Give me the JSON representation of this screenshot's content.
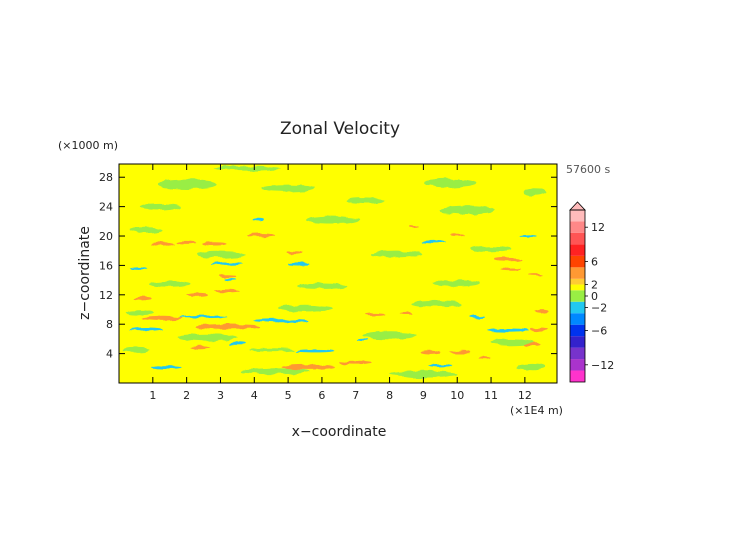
{
  "chart_data": {
    "type": "heatmap",
    "title": "Zonal Velocity",
    "xlabel": "x−coordinate",
    "ylabel": "z−coordinate",
    "x_unit": "(×1E4 m)",
    "y_unit": "(×1000 m)",
    "time_label": "57600 s",
    "xlim": [
      0,
      12.95
    ],
    "ylim": [
      0,
      29.8
    ],
    "x_ticks": [
      1,
      2,
      3,
      4,
      5,
      6,
      7,
      8,
      9,
      10,
      11,
      12
    ],
    "y_ticks": [
      4,
      8,
      12,
      16,
      20,
      24,
      28
    ],
    "colorbar": {
      "range": [
        -15,
        15
      ],
      "labels": [
        12,
        6,
        2,
        0,
        -2,
        -6,
        -12
      ],
      "tick_labels": [
        "12",
        "6",
        "2",
        "0",
        "−2",
        "−6",
        "−12"
      ],
      "levels": [
        {
          "lo": -15,
          "hi": -13,
          "color": "#ff33cc"
        },
        {
          "lo": -13,
          "hi": -11,
          "color": "#aa33cc"
        },
        {
          "lo": -11,
          "hi": -9,
          "color": "#7733cc"
        },
        {
          "lo": -9,
          "hi": -7,
          "color": "#3322cc"
        },
        {
          "lo": -7,
          "hi": -5,
          "color": "#0033ee"
        },
        {
          "lo": -5,
          "hi": -3,
          "color": "#0088ff"
        },
        {
          "lo": -3,
          "hi": -1,
          "color": "#22c8f0"
        },
        {
          "lo": -1,
          "hi": 1,
          "color": "#99ee44"
        },
        {
          "lo": 1,
          "hi": 2,
          "color": "#ffff00"
        },
        {
          "lo": 2,
          "hi": 3,
          "color": "#ffcc33"
        },
        {
          "lo": 3,
          "hi": 5,
          "color": "#ff9933"
        },
        {
          "lo": 5,
          "hi": 7,
          "color": "#ff4400"
        },
        {
          "lo": 7,
          "hi": 9,
          "color": "#ff2222"
        },
        {
          "lo": 9,
          "hi": 11,
          "color": "#ff5555"
        },
        {
          "lo": 11,
          "hi": 13,
          "color": "#ff8888"
        },
        {
          "lo": 13,
          "hi": 15,
          "color": "#ffbbbb"
        }
      ]
    },
    "background_level": 1.5,
    "regions": [
      {
        "x": 1.3,
        "z": 8.8,
        "w": 1.2,
        "h": 0.55,
        "value": 3.5
      },
      {
        "x": 0.8,
        "z": 7.4,
        "w": 1.0,
        "h": 0.45,
        "value": -2.5
      },
      {
        "x": 2.5,
        "z": 9.0,
        "w": 1.4,
        "h": 0.35,
        "value": -2.5
      },
      {
        "x": 3.2,
        "z": 7.7,
        "w": 1.9,
        "h": 0.65,
        "value": 3.5
      },
      {
        "x": 4.8,
        "z": 8.4,
        "w": 1.6,
        "h": 0.4,
        "value": -2.5
      },
      {
        "x": 4.5,
        "z": 4.5,
        "w": 1.3,
        "h": 0.45,
        "value": 0
      },
      {
        "x": 5.8,
        "z": 4.3,
        "w": 1.2,
        "h": 0.4,
        "value": -2.5
      },
      {
        "x": 5.6,
        "z": 2.2,
        "w": 1.6,
        "h": 0.7,
        "value": 3.5
      },
      {
        "x": 7.0,
        "z": 2.8,
        "w": 1.0,
        "h": 0.45,
        "value": 3.5
      },
      {
        "x": 2.4,
        "z": 4.8,
        "w": 0.6,
        "h": 0.4,
        "value": 3.5
      },
      {
        "x": 3.5,
        "z": 5.3,
        "w": 0.5,
        "h": 0.35,
        "value": -2.5
      },
      {
        "x": 1.4,
        "z": 2.2,
        "w": 0.9,
        "h": 0.45,
        "value": -2.5
      },
      {
        "x": 0.7,
        "z": 11.5,
        "w": 0.5,
        "h": 0.5,
        "value": 3.5
      },
      {
        "x": 2.3,
        "z": 12.1,
        "w": 0.6,
        "h": 0.5,
        "value": 3.5
      },
      {
        "x": 3.2,
        "z": 12.6,
        "w": 0.8,
        "h": 0.4,
        "value": 3.5
      },
      {
        "x": 3.2,
        "z": 14.5,
        "w": 0.5,
        "h": 0.45,
        "value": 3.5
      },
      {
        "x": 3.2,
        "z": 16.2,
        "w": 0.9,
        "h": 0.4,
        "value": -2.5
      },
      {
        "x": 1.3,
        "z": 18.9,
        "w": 0.7,
        "h": 0.5,
        "value": 3.5
      },
      {
        "x": 2.0,
        "z": 19.2,
        "w": 0.6,
        "h": 0.4,
        "value": 3.5
      },
      {
        "x": 2.8,
        "z": 19.0,
        "w": 0.7,
        "h": 0.45,
        "value": 3.5
      },
      {
        "x": 4.2,
        "z": 20.1,
        "w": 0.8,
        "h": 0.5,
        "value": 3.5
      },
      {
        "x": 4.1,
        "z": 22.1,
        "w": 0.4,
        "h": 0.35,
        "value": -2.5
      },
      {
        "x": 5.2,
        "z": 17.8,
        "w": 0.5,
        "h": 0.4,
        "value": 3.5
      },
      {
        "x": 5.3,
        "z": 16.3,
        "w": 0.6,
        "h": 0.35,
        "value": -2.5
      },
      {
        "x": 3.3,
        "z": 14.0,
        "w": 0.3,
        "h": 0.3,
        "value": -2.5
      },
      {
        "x": 0.6,
        "z": 15.7,
        "w": 0.5,
        "h": 0.35,
        "value": -2.5
      },
      {
        "x": 8.7,
        "z": 21.3,
        "w": 0.3,
        "h": 0.3,
        "value": 3.5
      },
      {
        "x": 9.3,
        "z": 19.2,
        "w": 0.7,
        "h": 0.4,
        "value": -2.5
      },
      {
        "x": 10.0,
        "z": 20.1,
        "w": 0.4,
        "h": 0.3,
        "value": 3.5
      },
      {
        "x": 11.5,
        "z": 16.8,
        "w": 0.8,
        "h": 0.45,
        "value": 3.5
      },
      {
        "x": 11.6,
        "z": 15.5,
        "w": 0.6,
        "h": 0.3,
        "value": 3.5
      },
      {
        "x": 9.2,
        "z": 4.2,
        "w": 0.6,
        "h": 0.5,
        "value": 3.5
      },
      {
        "x": 10.1,
        "z": 4.3,
        "w": 0.6,
        "h": 0.45,
        "value": 3.5
      },
      {
        "x": 9.5,
        "z": 2.4,
        "w": 0.7,
        "h": 0.4,
        "value": -2.5
      },
      {
        "x": 10.8,
        "z": 3.4,
        "w": 0.4,
        "h": 0.35,
        "value": 3.5
      },
      {
        "x": 11.5,
        "z": 7.1,
        "w": 1.2,
        "h": 0.5,
        "value": -2.5
      },
      {
        "x": 12.4,
        "z": 7.3,
        "w": 0.5,
        "h": 0.5,
        "value": 3.5
      },
      {
        "x": 12.5,
        "z": 9.8,
        "w": 0.4,
        "h": 0.5,
        "value": 3.5
      },
      {
        "x": 10.6,
        "z": 9.0,
        "w": 0.5,
        "h": 0.4,
        "value": -2.5
      },
      {
        "x": 12.2,
        "z": 5.3,
        "w": 0.5,
        "h": 0.4,
        "value": 3.5
      },
      {
        "x": 7.6,
        "z": 9.3,
        "w": 0.6,
        "h": 0.35,
        "value": 3.5
      },
      {
        "x": 8.5,
        "z": 9.4,
        "w": 0.4,
        "h": 0.3,
        "value": 3.5
      },
      {
        "x": 7.2,
        "z": 5.8,
        "w": 0.3,
        "h": 0.3,
        "value": -2.5
      },
      {
        "x": 12.1,
        "z": 20.0,
        "w": 0.5,
        "h": 0.3,
        "value": -2.5
      },
      {
        "x": 12.3,
        "z": 14.8,
        "w": 0.4,
        "h": 0.3,
        "value": 3.5
      }
    ],
    "neutral_regions": [
      {
        "x": 2.0,
        "z": 27.0,
        "w": 1.8,
        "h": 1.2
      },
      {
        "x": 5.0,
        "z": 26.5,
        "w": 1.6,
        "h": 1.0
      },
      {
        "x": 9.8,
        "z": 27.2,
        "w": 1.5,
        "h": 1.2
      },
      {
        "x": 1.2,
        "z": 24.0,
        "w": 1.2,
        "h": 0.9
      },
      {
        "x": 6.3,
        "z": 22.2,
        "w": 1.6,
        "h": 1.0
      },
      {
        "x": 10.3,
        "z": 23.5,
        "w": 1.6,
        "h": 1.0
      },
      {
        "x": 0.8,
        "z": 20.8,
        "w": 1.0,
        "h": 0.8
      },
      {
        "x": 3.0,
        "z": 17.5,
        "w": 1.4,
        "h": 0.9
      },
      {
        "x": 8.2,
        "z": 17.5,
        "w": 1.5,
        "h": 0.9
      },
      {
        "x": 11.0,
        "z": 18.2,
        "w": 1.2,
        "h": 0.8
      },
      {
        "x": 1.5,
        "z": 13.5,
        "w": 1.2,
        "h": 0.8
      },
      {
        "x": 6.0,
        "z": 13.2,
        "w": 1.5,
        "h": 0.8
      },
      {
        "x": 10.0,
        "z": 13.6,
        "w": 1.4,
        "h": 0.9
      },
      {
        "x": 0.6,
        "z": 9.6,
        "w": 0.8,
        "h": 0.6
      },
      {
        "x": 5.5,
        "z": 10.2,
        "w": 1.6,
        "h": 0.9
      },
      {
        "x": 9.4,
        "z": 10.8,
        "w": 1.5,
        "h": 0.9
      },
      {
        "x": 2.6,
        "z": 6.2,
        "w": 1.8,
        "h": 1.0
      },
      {
        "x": 8.0,
        "z": 6.5,
        "w": 1.6,
        "h": 1.1
      },
      {
        "x": 11.6,
        "z": 5.6,
        "w": 1.2,
        "h": 0.8
      },
      {
        "x": 4.6,
        "z": 1.6,
        "w": 2.0,
        "h": 0.8
      },
      {
        "x": 9.0,
        "z": 1.2,
        "w": 2.0,
        "h": 0.8
      },
      {
        "x": 12.2,
        "z": 2.2,
        "w": 0.8,
        "h": 0.8
      },
      {
        "x": 0.5,
        "z": 4.5,
        "w": 0.8,
        "h": 0.7
      },
      {
        "x": 7.3,
        "z": 24.8,
        "w": 1.2,
        "h": 0.9
      },
      {
        "x": 12.3,
        "z": 26.0,
        "w": 0.7,
        "h": 1.0
      },
      {
        "x": 3.8,
        "z": 29.2,
        "w": 2.0,
        "h": 0.6
      }
    ]
  }
}
